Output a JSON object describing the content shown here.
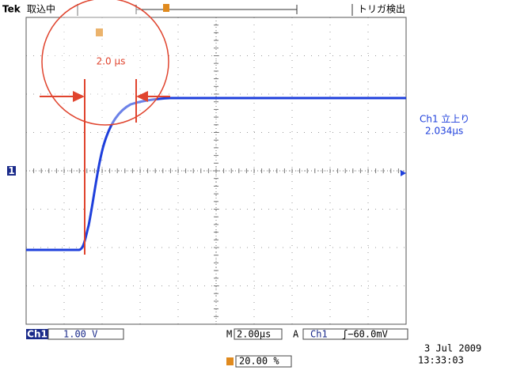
{
  "header": {
    "brand": "Tek",
    "status": "取込中",
    "trigger_status": "トリガ検出"
  },
  "annotation": {
    "label": "2.0 μs"
  },
  "channel_marker": "1",
  "measurement": {
    "label": "Ch1 立上り",
    "value": "2.034μs"
  },
  "footer": {
    "channel": "Ch1",
    "scale": "1.00 V",
    "timebase_prefix": "M",
    "timebase": "2.00μs",
    "trigger_mode": "A",
    "trigger_source": "Ch1",
    "trigger_level": "ʃ−60.0mV",
    "trigger_position": "20.00 %",
    "date": "3 Jul  2009",
    "time": "13:33:03"
  }
}
